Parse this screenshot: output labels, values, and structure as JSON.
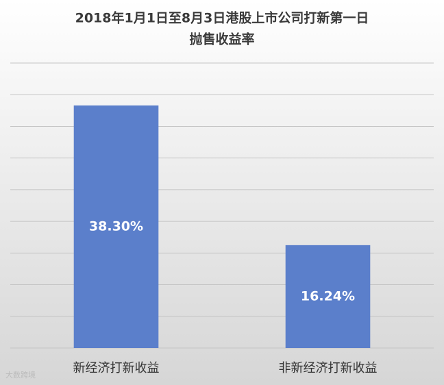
{
  "chart_data": {
    "type": "bar",
    "title": [
      "2018年1月1日至8月3日港股上市公司打新第一日",
      "抛售收益率"
    ],
    "categories": [
      "新经济打新收益",
      "非新经济打新收益"
    ],
    "values": [
      38.3,
      16.24
    ],
    "value_labels": [
      "38.30%",
      "16.24%"
    ],
    "color": "#5b7fcb",
    "ylim": [
      0,
      45
    ],
    "yticks": [
      0,
      5,
      10,
      15,
      20,
      25,
      30,
      35,
      40,
      45
    ],
    "grid": true,
    "watermark": "大数跨境"
  }
}
